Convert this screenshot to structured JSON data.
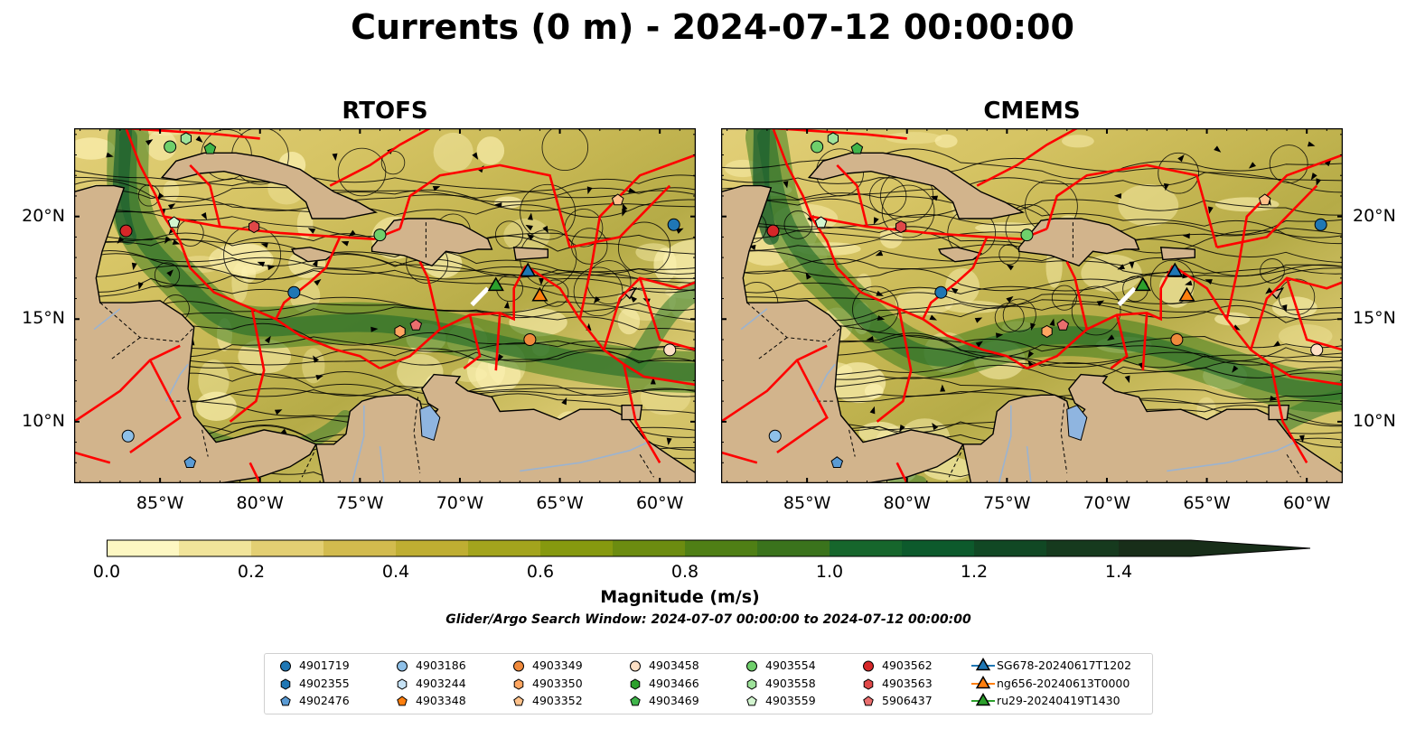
{
  "title": "Currents (0 m) - 2024-07-12 00:00:00",
  "panels": [
    {
      "name": "RTOFS"
    },
    {
      "name": "CMEMS"
    }
  ],
  "map": {
    "lon_range": [
      -89.3,
      -58.2
    ],
    "lat_range": [
      7.0,
      24.3
    ],
    "lon_ticks": [
      "85°W",
      "80°W",
      "75°W",
      "70°W",
      "65°W",
      "60°W"
    ],
    "lat_ticks": [
      "20°N",
      "15°N",
      "10°N"
    ],
    "colors": {
      "land": "#d2b48c",
      "eez_lines": "#ff0000",
      "streamlines": "#000000",
      "lakes": "#8fb5e0",
      "low_speed": "#fdf7c2",
      "high_speed": "#0a3a18"
    }
  },
  "colorbar": {
    "label": "Magnitude (m/s)",
    "range": [
      0.0,
      1.5
    ],
    "ticks": [
      "0.0",
      "0.2",
      "0.4",
      "0.6",
      "0.8",
      "1.0",
      "1.2",
      "1.4"
    ],
    "colors": [
      "#fdf7c2",
      "#f1e49a",
      "#e3cf73",
      "#d2bb4e",
      "#bfae32",
      "#a3a41d",
      "#86990f",
      "#6c8c10",
      "#4f7f15",
      "#3a731c",
      "#16662c",
      "#0d5a2c",
      "#114824",
      "#163a1e",
      "#182e19"
    ]
  },
  "search_window": "Glider/Argo Search Window: 2024-07-07 00:00:00 to 2024-07-12 00:00:00",
  "legend": [
    {
      "label": "4901719",
      "marker": "circle",
      "color": "#1f77b4"
    },
    {
      "label": "4902355",
      "marker": "hexagon",
      "color": "#1f77b4"
    },
    {
      "label": "4902476",
      "marker": "pentagon",
      "color": "#5a9bd4"
    },
    {
      "label": "4903186",
      "marker": "circle",
      "color": "#8ec0e8"
    },
    {
      "label": "4903244",
      "marker": "hexagon",
      "color": "#c6e2f5"
    },
    {
      "label": "4903348",
      "marker": "pentagon",
      "color": "#ff7f0e"
    },
    {
      "label": "4903349",
      "marker": "circle",
      "color": "#f08a3c"
    },
    {
      "label": "4903350",
      "marker": "hexagon",
      "color": "#ffa661"
    },
    {
      "label": "4903352",
      "marker": "pentagon",
      "color": "#ffc18a"
    },
    {
      "label": "4903458",
      "marker": "circle",
      "color": "#fde0c5"
    },
    {
      "label": "4903466",
      "marker": "hexagon",
      "color": "#2ca02c"
    },
    {
      "label": "4903469",
      "marker": "pentagon",
      "color": "#3fb54a"
    },
    {
      "label": "4903554",
      "marker": "circle",
      "color": "#6fcf6b"
    },
    {
      "label": "4903558",
      "marker": "hexagon",
      "color": "#9ee29a"
    },
    {
      "label": "4903559",
      "marker": "pentagon",
      "color": "#d3f5d0"
    },
    {
      "label": "4903562",
      "marker": "circle",
      "color": "#d62728"
    },
    {
      "label": "4903563",
      "marker": "hexagon",
      "color": "#e04848"
    },
    {
      "label": "5906437",
      "marker": "pentagon",
      "color": "#ea6e6e"
    },
    {
      "label": "SG678-20240617T1202",
      "marker": "triangle",
      "color": "#1f77b4"
    },
    {
      "label": "ng656-20240613T0000",
      "marker": "triangle",
      "color": "#ff7f0e"
    },
    {
      "label": "ru29-20240419T1430",
      "marker": "triangle",
      "color": "#2ca02c"
    }
  ],
  "floats": [
    {
      "id": "4901719",
      "lon": -59.3,
      "lat": 19.6
    },
    {
      "id": "4901719",
      "lon": -78.3,
      "lat": 16.3
    },
    {
      "id": "4903186",
      "lon": -86.6,
      "lat": 9.3
    },
    {
      "id": "4902476",
      "lon": -83.5,
      "lat": 8.0
    },
    {
      "id": "4903349",
      "lon": -66.5,
      "lat": 14.0
    },
    {
      "id": "4903350",
      "lon": -73.0,
      "lat": 14.4
    },
    {
      "id": "4903352",
      "lon": -62.1,
      "lat": 20.8
    },
    {
      "id": "4903458",
      "lon": -59.5,
      "lat": 13.5
    },
    {
      "id": "4903554",
      "lon": -74.0,
      "lat": 19.1
    },
    {
      "id": "4903554",
      "lon": -84.5,
      "lat": 23.4
    },
    {
      "id": "4903469",
      "lon": -82.5,
      "lat": 23.3
    },
    {
      "id": "4903558",
      "lon": -83.7,
      "lat": 23.8
    },
    {
      "id": "4903559",
      "lon": -84.3,
      "lat": 19.7
    },
    {
      "id": "4903562",
      "lon": -86.7,
      "lat": 19.3
    },
    {
      "id": "4903563",
      "lon": -80.3,
      "lat": 19.5
    },
    {
      "id": "5906437",
      "lon": -72.2,
      "lat": 14.7
    }
  ],
  "gliders": [
    {
      "id": "SG678-20240617T1202",
      "lon": -66.6,
      "lat": 17.3
    },
    {
      "id": "ng656-20240613T0000",
      "lon": -66.0,
      "lat": 16.1
    },
    {
      "id": "ru29-20240419T1430",
      "lon": -68.2,
      "lat": 16.6
    }
  ]
}
